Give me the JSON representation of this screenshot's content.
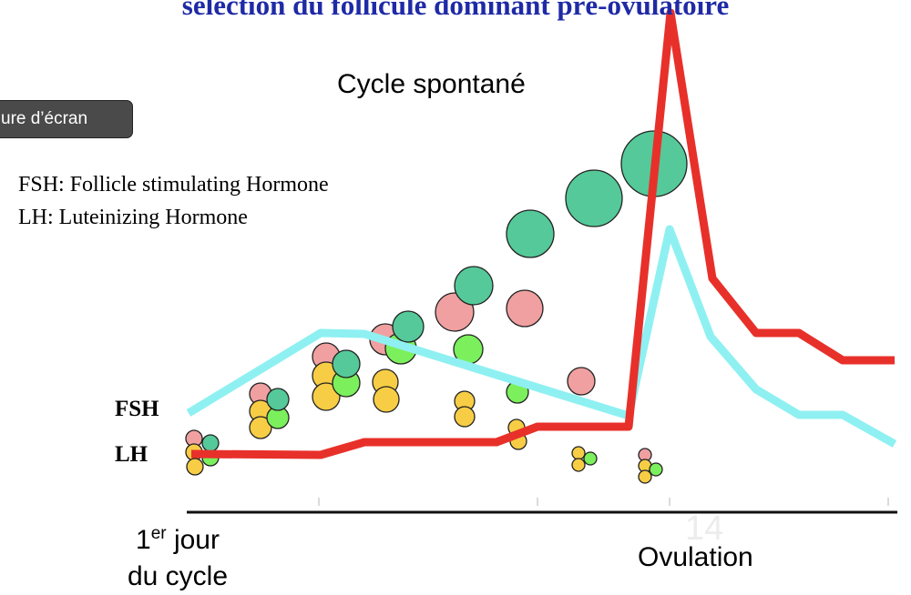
{
  "title": "sélection du follicule dominant pré-ovulatoire",
  "capture_button": "ure d’écran",
  "cycle_label": "Cycle spontané",
  "legend": {
    "fsh": "FSH: Follicle stimulating Hormone",
    "lh": "LH: Luteinizing Hormone"
  },
  "axis_labels": {
    "fsh": "FSH",
    "lh": "LH"
  },
  "x_axis": {
    "start_line1": "1",
    "start_sup": "er",
    "start_rest": " jour",
    "start_line2": "du cycle",
    "day_marker": "14",
    "end_label": "Ovulation"
  },
  "colors": {
    "fsh_curve": "#8ff0f2",
    "lh_curve": "#e8302a",
    "follicle_green_dark": "#55c999",
    "follicle_green_light": "#7bf05c",
    "follicle_pink": "#f0a0a0",
    "follicle_yellow": "#f7cd45",
    "title": "#1f2aa6"
  }
}
